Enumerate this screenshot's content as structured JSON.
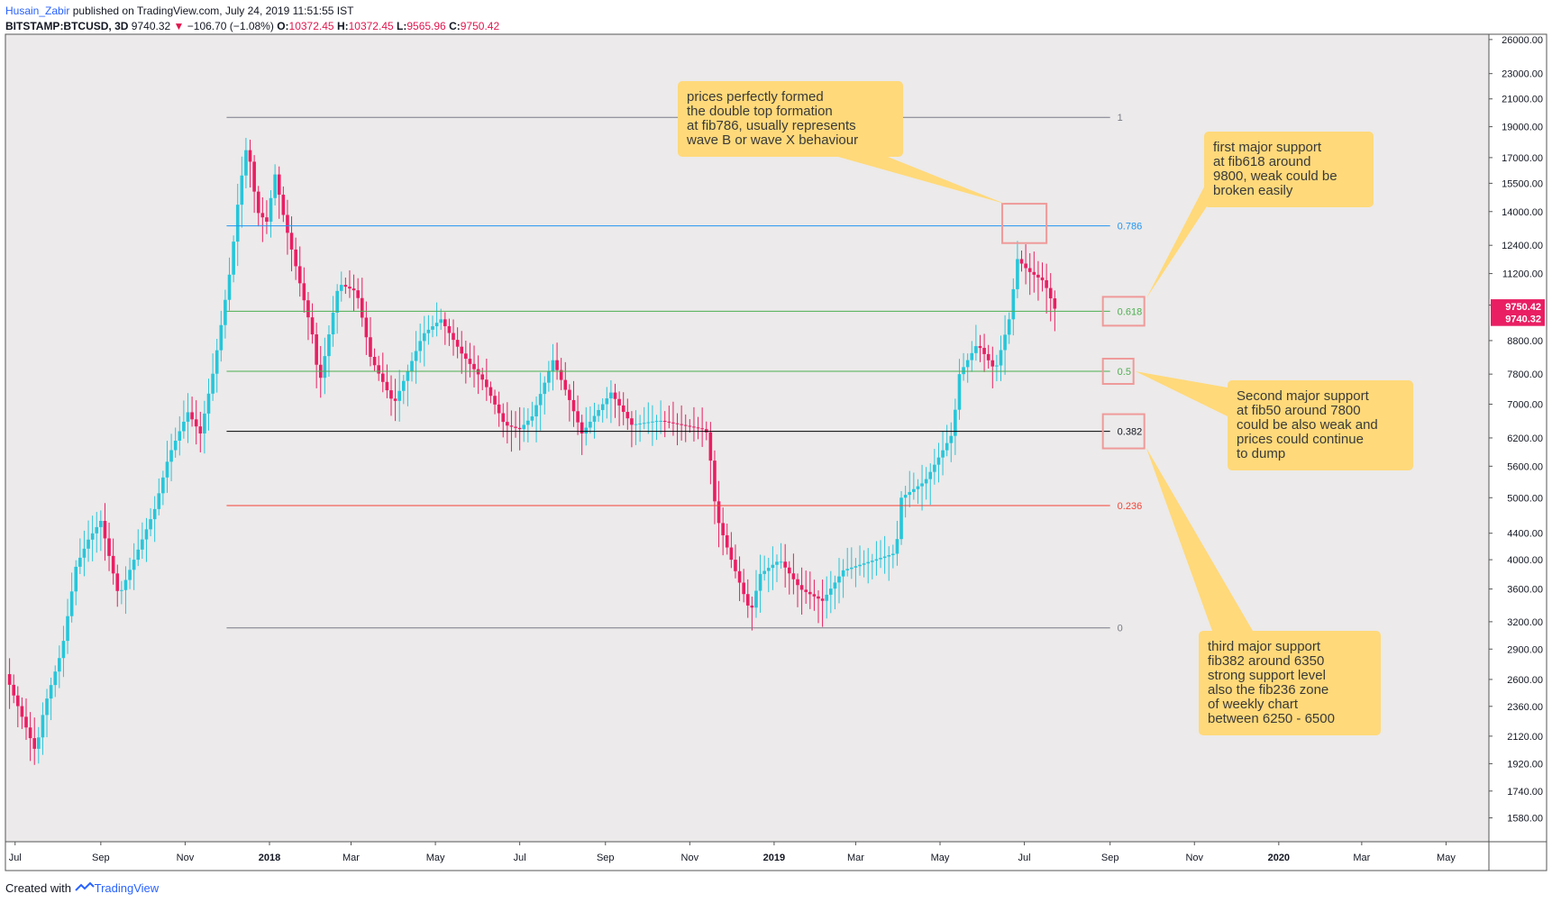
{
  "header": {
    "author": "Husain_Zabir",
    "published": "published on TradingView.com, July 24, 2019 11:51:55 IST",
    "symbol": "BITSTAMP:BTCUSD, 3D",
    "last": "9740.32",
    "arrow": "▼",
    "change": "−106.70 (−1.08%)",
    "open_label": "O:",
    "open": "10372.45",
    "high_label": "H:",
    "high": "10372.45",
    "low_label": "L:",
    "low": "9565.96",
    "close_label": "C:",
    "close": "9750.42"
  },
  "footer": {
    "created": "Created with",
    "brand": "TradingView"
  },
  "colors": {
    "background": "#eceaea",
    "up": "#26c6da",
    "down": "#e91e63",
    "axis_text": "#131722",
    "note_fill": "#ffd97a",
    "box_stroke": "#ef9a9a"
  },
  "chart_data": {
    "type": "candlestick",
    "y_scale": "log",
    "ylim": [
      1450,
      26500
    ],
    "y_ticks": [
      1580,
      1740,
      1920,
      2120,
      2360,
      2600,
      2900,
      3200,
      3600,
      4000,
      4400,
      5000,
      5600,
      6200,
      7000,
      7800,
      8800,
      10000,
      11200,
      12400,
      14000,
      15500,
      17000,
      19000,
      21000,
      23000,
      26000
    ],
    "y_tick_labels": [
      "1580.00",
      "1740.00",
      "1920.00",
      "2120.00",
      "2360.00",
      "2600.00",
      "2900.00",
      "3200.00",
      "3600.00",
      "4000.00",
      "4400.00",
      "5000.00",
      "5600.00",
      "6200.00",
      "7000.00",
      "7800.00",
      "8800.00",
      "",
      "11200.00",
      "12400.00",
      "14000.00",
      "15500.00",
      "17000.00",
      "19000.00",
      "21000.00",
      "23000.00",
      "26000.00"
    ],
    "x_range": [
      "2017-06-24",
      "2020-06-01"
    ],
    "x_ticks": [
      {
        "date": "2017-07-01",
        "label": "Jul",
        "bold": false
      },
      {
        "date": "2017-09-01",
        "label": "Sep",
        "bold": false
      },
      {
        "date": "2017-11-01",
        "label": "Nov",
        "bold": false
      },
      {
        "date": "2018-01-01",
        "label": "2018",
        "bold": true
      },
      {
        "date": "2018-03-01",
        "label": "Mar",
        "bold": false
      },
      {
        "date": "2018-05-01",
        "label": "May",
        "bold": false
      },
      {
        "date": "2018-07-01",
        "label": "Jul",
        "bold": false
      },
      {
        "date": "2018-09-01",
        "label": "Sep",
        "bold": false
      },
      {
        "date": "2018-11-01",
        "label": "Nov",
        "bold": false
      },
      {
        "date": "2019-01-01",
        "label": "2019",
        "bold": true
      },
      {
        "date": "2019-03-01",
        "label": "Mar",
        "bold": false
      },
      {
        "date": "2019-05-01",
        "label": "May",
        "bold": false
      },
      {
        "date": "2019-07-01",
        "label": "Jul",
        "bold": false
      },
      {
        "date": "2019-09-01",
        "label": "Sep",
        "bold": false
      },
      {
        "date": "2019-11-01",
        "label": "Nov",
        "bold": false
      },
      {
        "date": "2020-01-01",
        "label": "2020",
        "bold": true
      },
      {
        "date": "2020-03-01",
        "label": "Mar",
        "bold": false
      },
      {
        "date": "2020-05-01",
        "label": "May",
        "bold": false
      }
    ],
    "series_path": [
      [
        "2017-06-24",
        2650
      ],
      [
        "2017-07-16",
        2000
      ],
      [
        "2017-07-22",
        2350
      ],
      [
        "2017-08-04",
        2900
      ],
      [
        "2017-08-14",
        3900
      ],
      [
        "2017-08-23",
        4300
      ],
      [
        "2017-09-01",
        4600
      ],
      [
        "2017-09-14",
        3500
      ],
      [
        "2017-09-25",
        4000
      ],
      [
        "2017-10-10",
        4800
      ],
      [
        "2017-10-20",
        5800
      ],
      [
        "2017-11-03",
        6800
      ],
      [
        "2017-11-12",
        6300
      ],
      [
        "2017-11-22",
        8000
      ],
      [
        "2017-12-04",
        11500
      ],
      [
        "2017-12-10",
        15000
      ],
      [
        "2017-12-16",
        18000
      ],
      [
        "2017-12-23",
        14000
      ],
      [
        "2017-12-30",
        13500
      ],
      [
        "2018-01-05",
        16000
      ],
      [
        "2018-01-12",
        13500
      ],
      [
        "2018-01-20",
        11500
      ],
      [
        "2018-02-01",
        9000
      ],
      [
        "2018-02-06",
        7500
      ],
      [
        "2018-02-20",
        10800
      ],
      [
        "2018-03-05",
        10500
      ],
      [
        "2018-03-15",
        8300
      ],
      [
        "2018-04-01",
        7000
      ],
      [
        "2018-04-22",
        9000
      ],
      [
        "2018-05-05",
        9500
      ],
      [
        "2018-05-20",
        8400
      ],
      [
        "2018-06-05",
        7600
      ],
      [
        "2018-06-20",
        6500
      ],
      [
        "2018-07-01",
        6400
      ],
      [
        "2018-07-10",
        6700
      ],
      [
        "2018-07-25",
        8200
      ],
      [
        "2018-08-05",
        7200
      ],
      [
        "2018-08-15",
        6300
      ],
      [
        "2018-08-30",
        7000
      ],
      [
        "2018-09-05",
        7300
      ],
      [
        "2018-09-20",
        6500
      ],
      [
        "2018-10-10",
        6600
      ],
      [
        "2018-11-10",
        6400
      ],
      [
        "2018-11-14",
        6300
      ],
      [
        "2018-11-20",
        4700
      ],
      [
        "2018-12-01",
        4000
      ],
      [
        "2018-12-15",
        3300
      ],
      [
        "2018-12-22",
        3800
      ],
      [
        "2019-01-05",
        4000
      ],
      [
        "2019-01-20",
        3600
      ],
      [
        "2019-02-05",
        3450
      ],
      [
        "2019-02-20",
        3850
      ],
      [
        "2019-03-15",
        4000
      ],
      [
        "2019-03-30",
        4100
      ],
      [
        "2019-04-03",
        5000
      ],
      [
        "2019-04-20",
        5300
      ],
      [
        "2019-05-10",
        6300
      ],
      [
        "2019-05-15",
        7800
      ],
      [
        "2019-05-28",
        8700
      ],
      [
        "2019-06-10",
        7900
      ],
      [
        "2019-06-20",
        9500
      ],
      [
        "2019-06-26",
        11800
      ],
      [
        "2019-07-04",
        11300
      ],
      [
        "2019-07-15",
        10900
      ],
      [
        "2019-07-24",
        9750
      ]
    ],
    "fib_levels": [
      {
        "level": "1",
        "price": 19650,
        "color": "#787b86"
      },
      {
        "level": "0.786",
        "price": 13300,
        "color": "#2196f3"
      },
      {
        "level": "0.618",
        "price": 9780,
        "color": "#4caf50"
      },
      {
        "level": "0.5",
        "price": 7880,
        "color": "#4caf50"
      },
      {
        "level": "0.382",
        "price": 6350,
        "color": "#000000"
      },
      {
        "level": "0.236",
        "price": 4860,
        "color": "#f44336"
      },
      {
        "level": "0",
        "price": 3130,
        "color": "#787b86"
      }
    ],
    "fib_start": "2017-12-01",
    "fib_end": "2019-09-01",
    "price_labels": [
      {
        "value": "9750.42",
        "price": 9950,
        "color": "#e91e63"
      },
      {
        "value": "9740.32",
        "price": 9520,
        "color": "#e91e63"
      }
    ],
    "annotations": [
      {
        "id": "note-double-top",
        "lines": [
          "prices perfectly formed",
          "the double top formation",
          "at fib786, usually represents",
          "wave B or wave X behaviour"
        ]
      },
      {
        "id": "note-fib618",
        "lines": [
          "first major support",
          "at fib618 around",
          "9800, weak could be",
          "broken easily"
        ]
      },
      {
        "id": "note-fib50",
        "lines": [
          "Second major support",
          "at fib50 around 7800",
          "could be also weak and",
          "prices could continue",
          "to dump"
        ]
      },
      {
        "id": "note-fib382",
        "lines": [
          "third major support",
          "fib382 around 6350",
          "strong support level",
          "also the fib236 zone",
          "of weekly chart",
          "between  6250 - 6500"
        ]
      }
    ]
  }
}
